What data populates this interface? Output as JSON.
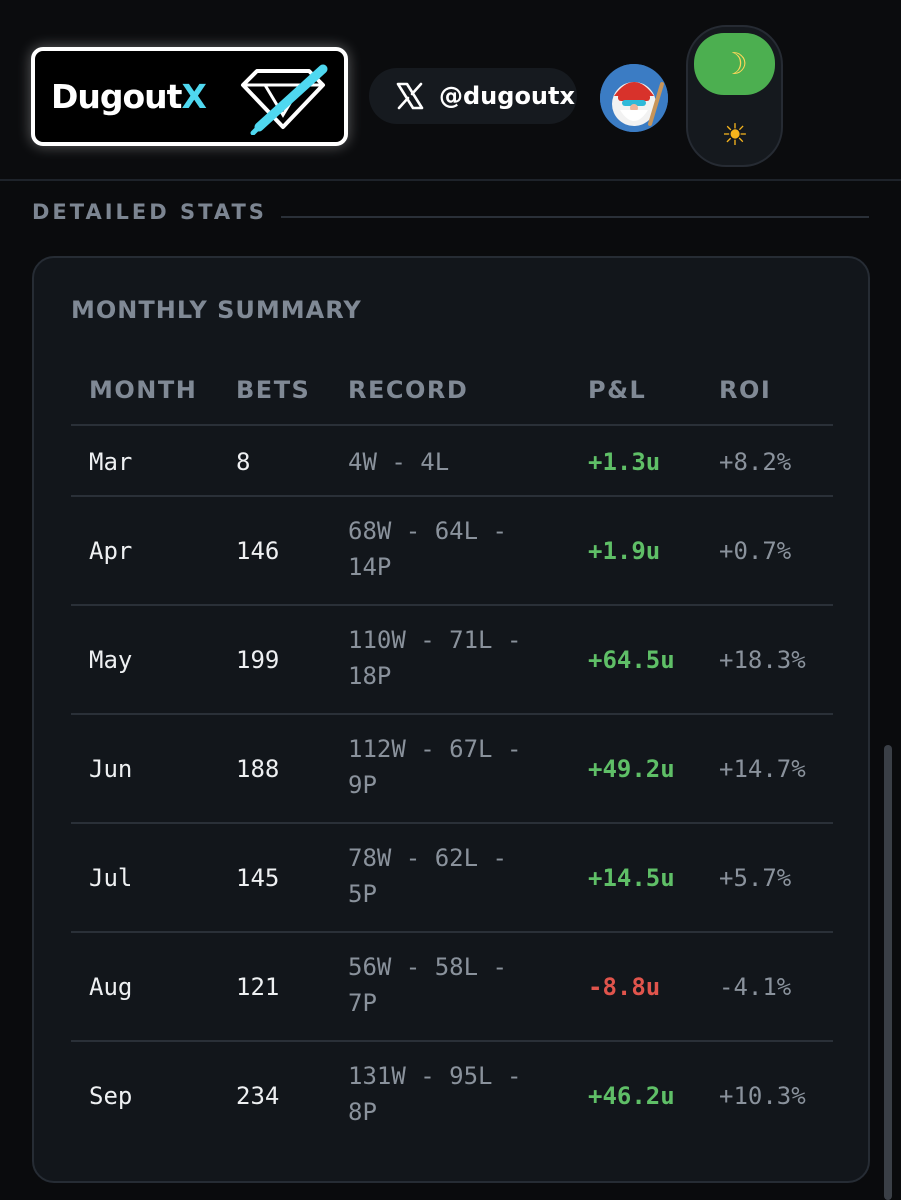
{
  "header": {
    "logo": {
      "word": "Dugout",
      "accent": "X"
    },
    "social": {
      "handle": "@dugoutx",
      "icon": "x-logo-icon"
    },
    "avatar": {
      "icon": "avatar-gnome-icon"
    },
    "theme_toggle": {
      "dark_icon": "moon-icon",
      "light_icon": "sun-icon",
      "active": "dark"
    }
  },
  "section": {
    "title": "DETAILED STATS"
  },
  "summary": {
    "title": "MONTHLY SUMMARY",
    "columns": {
      "month": "MONTH",
      "bets": "BETS",
      "record": "RECORD",
      "pl": "P&L",
      "roi": "ROI"
    },
    "rows": [
      {
        "month": "Mar",
        "bets": "8",
        "record_l1": "4W - 4L",
        "record_l2": "",
        "pl": "+1.3u",
        "pl_sign": "pos",
        "roi": "+8.2%"
      },
      {
        "month": "Apr",
        "bets": "146",
        "record_l1": "68W - 64L -",
        "record_l2": "14P",
        "pl": "+1.9u",
        "pl_sign": "pos",
        "roi": "+0.7%"
      },
      {
        "month": "May",
        "bets": "199",
        "record_l1": "110W - 71L -",
        "record_l2": "18P",
        "pl": "+64.5u",
        "pl_sign": "pos",
        "roi": "+18.3%"
      },
      {
        "month": "Jun",
        "bets": "188",
        "record_l1": "112W - 67L -",
        "record_l2": "9P",
        "pl": "+49.2u",
        "pl_sign": "pos",
        "roi": "+14.7%"
      },
      {
        "month": "Jul",
        "bets": "145",
        "record_l1": "78W - 62L -",
        "record_l2": "5P",
        "pl": "+14.5u",
        "pl_sign": "pos",
        "roi": "+5.7%"
      },
      {
        "month": "Aug",
        "bets": "121",
        "record_l1": "56W - 58L -",
        "record_l2": "7P",
        "pl": "-8.8u",
        "pl_sign": "neg",
        "roi": "-4.1%"
      },
      {
        "month": "Sep",
        "bets": "234",
        "record_l1": "131W - 95L -",
        "record_l2": "8P",
        "pl": "+46.2u",
        "pl_sign": "pos",
        "roi": "+10.3%"
      }
    ]
  },
  "colors": {
    "positive": "#5fbf67",
    "negative": "#e0544c",
    "accent": "#4fd8f0",
    "toggle": "#4caf50"
  }
}
